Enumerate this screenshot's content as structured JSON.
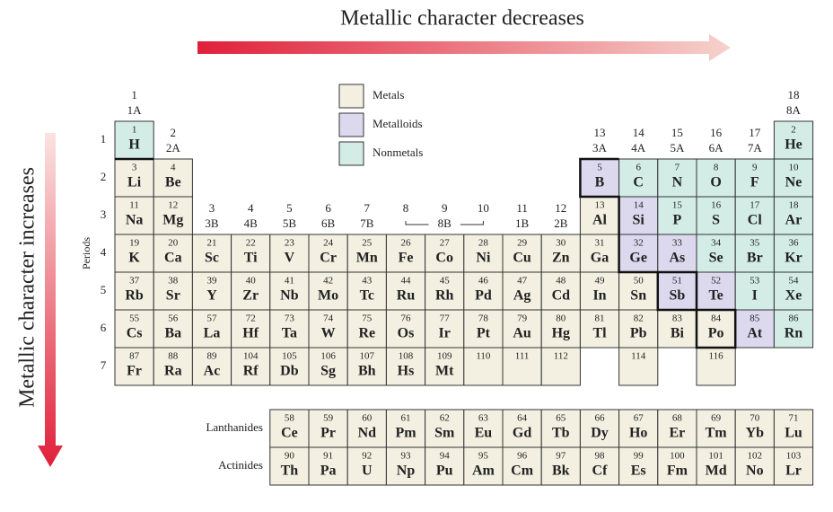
{
  "top_arrow": "Metallic character decreases",
  "side_arrow": "Metallic character increases",
  "periods_axis": "Periods",
  "legend": [
    {
      "label": "Metals",
      "kind": "metal",
      "color": "#f3f0e2"
    },
    {
      "label": "Metalloids",
      "kind": "metalloid",
      "color": "#dcd8ee"
    },
    {
      "label": "Nonmetals",
      "kind": "nonmetal",
      "color": "#d3ede6"
    }
  ],
  "groups": [
    {
      "number": "1",
      "label": "1A"
    },
    {
      "number": "2",
      "label": "2A"
    },
    {
      "number": "3",
      "label": "3B"
    },
    {
      "number": "4",
      "label": "4B"
    },
    {
      "number": "5",
      "label": "5B"
    },
    {
      "number": "6",
      "label": "6B"
    },
    {
      "number": "7",
      "label": "7B"
    },
    {
      "number": "8"
    },
    {
      "number": "9"
    },
    {
      "number": "10"
    },
    {
      "number": "11",
      "label": "1B"
    },
    {
      "number": "12",
      "label": "2B"
    },
    {
      "number": "13",
      "label": "3A"
    },
    {
      "number": "14",
      "label": "4A"
    },
    {
      "number": "15",
      "label": "5A"
    },
    {
      "number": "16",
      "label": "6A"
    },
    {
      "number": "17",
      "label": "7A"
    },
    {
      "number": "18",
      "label": "8A"
    }
  ],
  "group_8_10_label": "8B",
  "periods": [
    {
      "label": "1",
      "elements": [
        {
          "z": 1,
          "symbol": "H",
          "kind": "nonmetal"
        },
        {
          "z": 2,
          "symbol": "He",
          "kind": "nonmetal"
        }
      ]
    },
    {
      "label": "2",
      "elements": [
        {
          "z": 3,
          "symbol": "Li",
          "kind": "metal"
        },
        {
          "z": 4,
          "symbol": "Be",
          "kind": "metal"
        },
        {
          "z": 5,
          "symbol": "B",
          "kind": "metalloid"
        },
        {
          "z": 6,
          "symbol": "C",
          "kind": "nonmetal"
        },
        {
          "z": 7,
          "symbol": "N",
          "kind": "nonmetal"
        },
        {
          "z": 8,
          "symbol": "O",
          "kind": "nonmetal"
        },
        {
          "z": 9,
          "symbol": "F",
          "kind": "nonmetal"
        },
        {
          "z": 10,
          "symbol": "Ne",
          "kind": "nonmetal"
        }
      ]
    },
    {
      "label": "3",
      "elements": [
        {
          "z": 11,
          "symbol": "Na",
          "kind": "metal"
        },
        {
          "z": 12,
          "symbol": "Mg",
          "kind": "metal"
        },
        {
          "z": 13,
          "symbol": "Al",
          "kind": "metal"
        },
        {
          "z": 14,
          "symbol": "Si",
          "kind": "metalloid"
        },
        {
          "z": 15,
          "symbol": "P",
          "kind": "nonmetal"
        },
        {
          "z": 16,
          "symbol": "S",
          "kind": "nonmetal"
        },
        {
          "z": 17,
          "symbol": "Cl",
          "kind": "nonmetal"
        },
        {
          "z": 18,
          "symbol": "Ar",
          "kind": "nonmetal"
        }
      ]
    },
    {
      "label": "4",
      "elements": [
        {
          "z": 19,
          "symbol": "K",
          "kind": "metal"
        },
        {
          "z": 20,
          "symbol": "Ca",
          "kind": "metal"
        },
        {
          "z": 21,
          "symbol": "Sc",
          "kind": "metal"
        },
        {
          "z": 22,
          "symbol": "Ti",
          "kind": "metal"
        },
        {
          "z": 23,
          "symbol": "V",
          "kind": "metal"
        },
        {
          "z": 24,
          "symbol": "Cr",
          "kind": "metal"
        },
        {
          "z": 25,
          "symbol": "Mn",
          "kind": "metal"
        },
        {
          "z": 26,
          "symbol": "Fe",
          "kind": "metal"
        },
        {
          "z": 27,
          "symbol": "Co",
          "kind": "metal"
        },
        {
          "z": 28,
          "symbol": "Ni",
          "kind": "metal"
        },
        {
          "z": 29,
          "symbol": "Cu",
          "kind": "metal"
        },
        {
          "z": 30,
          "symbol": "Zn",
          "kind": "metal"
        },
        {
          "z": 31,
          "symbol": "Ga",
          "kind": "metal"
        },
        {
          "z": 32,
          "symbol": "Ge",
          "kind": "metalloid"
        },
        {
          "z": 33,
          "symbol": "As",
          "kind": "metalloid"
        },
        {
          "z": 34,
          "symbol": "Se",
          "kind": "nonmetal"
        },
        {
          "z": 35,
          "symbol": "Br",
          "kind": "nonmetal"
        },
        {
          "z": 36,
          "symbol": "Kr",
          "kind": "nonmetal"
        }
      ]
    },
    {
      "label": "5",
      "elements": [
        {
          "z": 37,
          "symbol": "Rb",
          "kind": "metal"
        },
        {
          "z": 38,
          "symbol": "Sr",
          "kind": "metal"
        },
        {
          "z": 39,
          "symbol": "Y",
          "kind": "metal"
        },
        {
          "z": 40,
          "symbol": "Zr",
          "kind": "metal"
        },
        {
          "z": 41,
          "symbol": "Nb",
          "kind": "metal"
        },
        {
          "z": 42,
          "symbol": "Mo",
          "kind": "metal"
        },
        {
          "z": 43,
          "symbol": "Tc",
          "kind": "metal"
        },
        {
          "z": 44,
          "symbol": "Ru",
          "kind": "metal"
        },
        {
          "z": 45,
          "symbol": "Rh",
          "kind": "metal"
        },
        {
          "z": 46,
          "symbol": "Pd",
          "kind": "metal"
        },
        {
          "z": 47,
          "symbol": "Ag",
          "kind": "metal"
        },
        {
          "z": 48,
          "symbol": "Cd",
          "kind": "metal"
        },
        {
          "z": 49,
          "symbol": "In",
          "kind": "metal"
        },
        {
          "z": 50,
          "symbol": "Sn",
          "kind": "metal"
        },
        {
          "z": 51,
          "symbol": "Sb",
          "kind": "metalloid"
        },
        {
          "z": 52,
          "symbol": "Te",
          "kind": "metalloid"
        },
        {
          "z": 53,
          "symbol": "I",
          "kind": "nonmetal"
        },
        {
          "z": 54,
          "symbol": "Xe",
          "kind": "nonmetal"
        }
      ]
    },
    {
      "label": "6",
      "elements": [
        {
          "z": 55,
          "symbol": "Cs",
          "kind": "metal"
        },
        {
          "z": 56,
          "symbol": "Ba",
          "kind": "metal"
        },
        {
          "z": 57,
          "symbol": "La",
          "kind": "metal"
        },
        {
          "z": 72,
          "symbol": "Hf",
          "kind": "metal"
        },
        {
          "z": 73,
          "symbol": "Ta",
          "kind": "metal"
        },
        {
          "z": 74,
          "symbol": "W",
          "kind": "metal"
        },
        {
          "z": 75,
          "symbol": "Re",
          "kind": "metal"
        },
        {
          "z": 76,
          "symbol": "Os",
          "kind": "metal"
        },
        {
          "z": 77,
          "symbol": "Ir",
          "kind": "metal"
        },
        {
          "z": 78,
          "symbol": "Pt",
          "kind": "metal"
        },
        {
          "z": 79,
          "symbol": "Au",
          "kind": "metal"
        },
        {
          "z": 80,
          "symbol": "Hg",
          "kind": "metal"
        },
        {
          "z": 81,
          "symbol": "Tl",
          "kind": "metal"
        },
        {
          "z": 82,
          "symbol": "Pb",
          "kind": "metal"
        },
        {
          "z": 83,
          "symbol": "Bi",
          "kind": "metal"
        },
        {
          "z": 84,
          "symbol": "Po",
          "kind": "metal"
        },
        {
          "z": 85,
          "symbol": "At",
          "kind": "metalloid"
        },
        {
          "z": 86,
          "symbol": "Rn",
          "kind": "nonmetal"
        }
      ]
    },
    {
      "label": "7",
      "elements": [
        {
          "z": 87,
          "symbol": "Fr",
          "kind": "metal"
        },
        {
          "z": 88,
          "symbol": "Ra",
          "kind": "metal"
        },
        {
          "z": 89,
          "symbol": "Ac",
          "kind": "metal"
        },
        {
          "z": 104,
          "symbol": "Rf",
          "kind": "metal"
        },
        {
          "z": 105,
          "symbol": "Db",
          "kind": "metal"
        },
        {
          "z": 106,
          "symbol": "Sg",
          "kind": "metal"
        },
        {
          "z": 107,
          "symbol": "Bh",
          "kind": "metal"
        },
        {
          "z": 108,
          "symbol": "Hs",
          "kind": "metal"
        },
        {
          "z": 109,
          "symbol": "Mt",
          "kind": "metal"
        },
        {
          "z": 110,
          "kind": "metal"
        },
        {
          "z": 111,
          "kind": "metal"
        },
        {
          "z": 112,
          "kind": "metal"
        },
        {
          "z": 114,
          "kind": "metal"
        },
        {
          "z": 116,
          "kind": "metal"
        }
      ]
    }
  ],
  "series_rows": [
    {
      "label": "Lanthanides",
      "elements": [
        {
          "z": 58,
          "symbol": "Ce",
          "kind": "metal"
        },
        {
          "z": 59,
          "symbol": "Pr",
          "kind": "metal"
        },
        {
          "z": 60,
          "symbol": "Nd",
          "kind": "metal"
        },
        {
          "z": 61,
          "symbol": "Pm",
          "kind": "metal"
        },
        {
          "z": 62,
          "symbol": "Sm",
          "kind": "metal"
        },
        {
          "z": 63,
          "symbol": "Eu",
          "kind": "metal"
        },
        {
          "z": 64,
          "symbol": "Gd",
          "kind": "metal"
        },
        {
          "z": 65,
          "symbol": "Tb",
          "kind": "metal"
        },
        {
          "z": 66,
          "symbol": "Dy",
          "kind": "metal"
        },
        {
          "z": 67,
          "symbol": "Ho",
          "kind": "metal"
        },
        {
          "z": 68,
          "symbol": "Er",
          "kind": "metal"
        },
        {
          "z": 69,
          "symbol": "Tm",
          "kind": "metal"
        },
        {
          "z": 70,
          "symbol": "Yb",
          "kind": "metal"
        },
        {
          "z": 71,
          "symbol": "Lu",
          "kind": "metal"
        }
      ]
    },
    {
      "label": "Actinides",
      "elements": [
        {
          "z": 90,
          "symbol": "Th",
          "kind": "metal"
        },
        {
          "z": 91,
          "symbol": "Pa",
          "kind": "metal"
        },
        {
          "z": 92,
          "symbol": "U",
          "kind": "metal"
        },
        {
          "z": 93,
          "symbol": "Np",
          "kind": "metal"
        },
        {
          "z": 94,
          "symbol": "Pu",
          "kind": "metal"
        },
        {
          "z": 95,
          "symbol": "Am",
          "kind": "metal"
        },
        {
          "z": 96,
          "symbol": "Cm",
          "kind": "metal"
        },
        {
          "z": 97,
          "symbol": "Bk",
          "kind": "metal"
        },
        {
          "z": 98,
          "symbol": "Cf",
          "kind": "metal"
        },
        {
          "z": 99,
          "symbol": "Es",
          "kind": "metal"
        },
        {
          "z": 100,
          "symbol": "Fm",
          "kind": "metal"
        },
        {
          "z": 101,
          "symbol": "Md",
          "kind": "metal"
        },
        {
          "z": 102,
          "symbol": "No",
          "kind": "metal"
        },
        {
          "z": 103,
          "symbol": "Lr",
          "kind": "metal"
        }
      ]
    }
  ]
}
